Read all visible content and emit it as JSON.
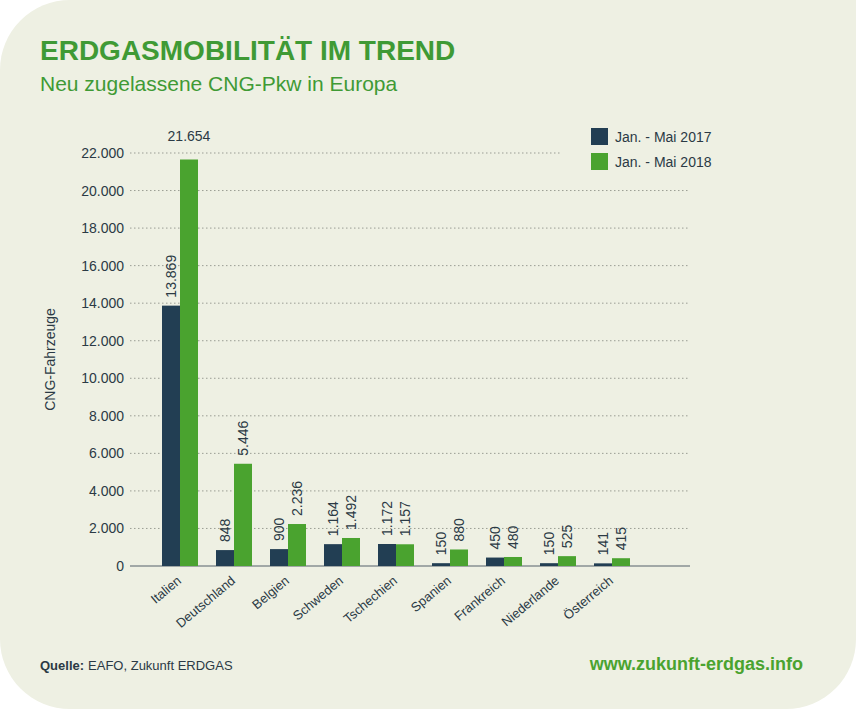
{
  "chart_data": {
    "type": "bar",
    "title": "ERDGASMOBILITÄT IM TREND",
    "subtitle": "Neu zugelassene CNG-Pkw in Europa",
    "y_label": "CNG-Fahrzeuge",
    "categories": [
      "Italien",
      "Deutschland",
      "Belgien",
      "Schweden",
      "Tschechien",
      "Spanien",
      "Frankreich",
      "Niederlande",
      "Österreich"
    ],
    "series": [
      {
        "name": "Jan. - Mai 2017",
        "color": "#223e53",
        "values": [
          13869,
          848,
          900,
          1164,
          1172,
          150,
          450,
          150,
          141
        ],
        "value_labels": [
          "13.869",
          "848",
          "900",
          "1.164",
          "1.172",
          "150",
          "450",
          "150",
          "141"
        ]
      },
      {
        "name": "Jan. - Mai 2018",
        "color": "#4aa32f",
        "values": [
          21654,
          5446,
          2236,
          1492,
          1157,
          880,
          480,
          525,
          415
        ],
        "value_labels": [
          "21.654",
          "5.446",
          "2.236",
          "1.492",
          "1.157",
          "880",
          "480",
          "525",
          "415"
        ]
      }
    ],
    "ylim": [
      0,
      22000
    ],
    "yticks": [
      0,
      {
        "value": 2000,
        "label": "2.000"
      },
      {
        "value": 4000,
        "label": "4.000"
      },
      {
        "value": 6000,
        "label": "6.000"
      },
      {
        "value": 8000,
        "label": "8.000"
      },
      {
        "value": 10000,
        "label": "10.000"
      },
      {
        "value": 12000,
        "label": "12.000"
      },
      {
        "value": 14000,
        "label": "14.000"
      },
      {
        "value": 16000,
        "label": "16.000"
      },
      {
        "value": 18000,
        "label": "18.000"
      },
      {
        "value": 20000,
        "label": "20.000"
      },
      {
        "value": 22000,
        "label": "22.000"
      }
    ],
    "grid": true,
    "legend": "top-right",
    "data_labels": true,
    "source_label": "Quelle:",
    "source": "EAFO, Zukunft ERDGAS",
    "website": "www.zukunft-erdgas.info"
  }
}
